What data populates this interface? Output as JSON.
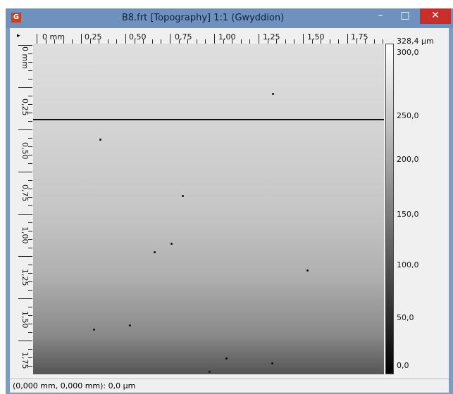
{
  "window": {
    "title": "B8.frt [Topography] 1:1 (Gwyddion)",
    "top_ruler": [
      "0 mm",
      "0,25",
      "0,50",
      "0,75",
      "1,00",
      "1,25",
      "1,50",
      "1,75"
    ],
    "left_ruler": [
      "0 mm",
      "0,25",
      "0,50",
      "0,75",
      "1,00",
      "1,25",
      "1,50",
      "1,75"
    ],
    "color_scale": [
      "328,4 µm",
      "300,0",
      "250,0",
      "200,0",
      "150,0",
      "100,0",
      "50,0",
      "0,0"
    ],
    "status": "(0,000 mm, 0,000 mm): 0,0 µm"
  }
}
